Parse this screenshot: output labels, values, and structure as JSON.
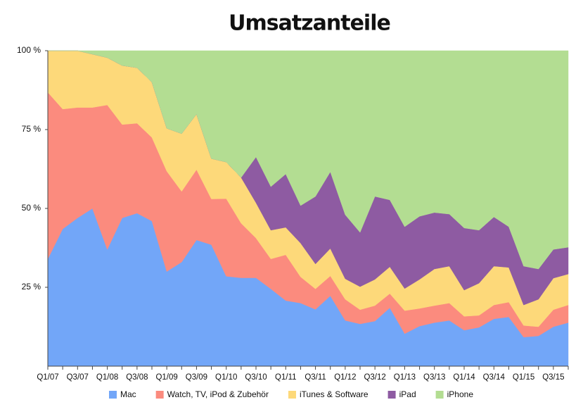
{
  "chart_data": {
    "type": "stacked-area",
    "title": "Umsatzanteile",
    "categories": [
      "Q1/07",
      null,
      "Q3/07",
      null,
      "Q1/08",
      null,
      "Q3/08",
      null,
      "Q1/09",
      null,
      "Q3/09",
      null,
      "Q1/10",
      null,
      "Q3/10",
      null,
      "Q1/11",
      null,
      "Q3/11",
      null,
      "Q1/12",
      null,
      "Q3/12",
      null,
      "Q1/13",
      null,
      "Q3/13",
      null,
      "Q1/14",
      null,
      "Q3/14",
      null,
      "Q1/15",
      null,
      "Q3/15",
      null
    ],
    "ylim": [
      0,
      100
    ],
    "yticks": [
      {
        "value": 25,
        "label": "25 %"
      },
      {
        "value": 50,
        "label": "50 %"
      },
      {
        "value": 75,
        "label": "75 %"
      },
      {
        "value": 100,
        "label": "100 %"
      }
    ],
    "legend": "bottom",
    "series": [
      {
        "name": "Mac",
        "color": "#72a6f8",
        "values": [
          34,
          43.5,
          47,
          50,
          37,
          47,
          48.5,
          46,
          30,
          33,
          40,
          38.5,
          28.5,
          28,
          28,
          24.5,
          20.8,
          20,
          18,
          22.3,
          14.5,
          13.4,
          14.3,
          18.5,
          10.3,
          12.7,
          13.8,
          14.5,
          11.4,
          12.3,
          15,
          15.6,
          9.2,
          9.6,
          12.5,
          13.8
        ]
      },
      {
        "name": "Watch, TV, iPod & Zubehör",
        "color": "#fb8b7e",
        "values": [
          52.8,
          38,
          35,
          32,
          45.8,
          29.6,
          28.5,
          26.5,
          31.8,
          22.4,
          22.3,
          14.5,
          24.6,
          17.3,
          12.6,
          9.5,
          14.5,
          8.3,
          6.5,
          6.3,
          6.7,
          4.5,
          4.9,
          4.5,
          7.3,
          5.6,
          5.4,
          5.5,
          4.4,
          3.8,
          4.4,
          4.7,
          3.7,
          2.9,
          5.4,
          5.6
        ]
      },
      {
        "name": "iTunes & Software",
        "color": "#fdd97a",
        "values": [
          13.2,
          18.5,
          18,
          16.9,
          15,
          18.7,
          17.6,
          17.5,
          13.6,
          18.3,
          17.6,
          12.8,
          11.6,
          14.5,
          11.2,
          9.1,
          8.7,
          10.7,
          7.9,
          8.7,
          6.5,
          7.3,
          8.3,
          8.5,
          7,
          9.2,
          11.6,
          11.7,
          8.3,
          10.2,
          12.3,
          11,
          6.5,
          8.7,
          10,
          9.8
        ]
      },
      {
        "name": "iPad",
        "color": "#8e5ba2",
        "values": [
          0,
          0,
          0,
          0,
          0,
          0,
          0,
          0,
          0,
          0,
          0,
          0,
          0,
          0,
          14.5,
          13.8,
          16.9,
          11.9,
          21.4,
          24.3,
          20.3,
          17.2,
          26.3,
          21.2,
          19.6,
          20,
          17.9,
          16.5,
          19.7,
          16.8,
          15.6,
          12.9,
          12.3,
          9.6,
          9.1,
          8.5
        ]
      },
      {
        "name": "iPhone",
        "color": "#b3dd92",
        "values": [
          0,
          0,
          0,
          1.1,
          2.2,
          4.7,
          5.4,
          10,
          24.6,
          26.3,
          20.1,
          34.2,
          35.3,
          40.2,
          33.7,
          43.1,
          39.1,
          49.1,
          46.2,
          38.4,
          52,
          57.6,
          46.2,
          47.3,
          55.8,
          52.5,
          51.3,
          51.8,
          56.2,
          56.9,
          52.7,
          55.8,
          68.3,
          69.2,
          63,
          62.3
        ]
      }
    ]
  }
}
